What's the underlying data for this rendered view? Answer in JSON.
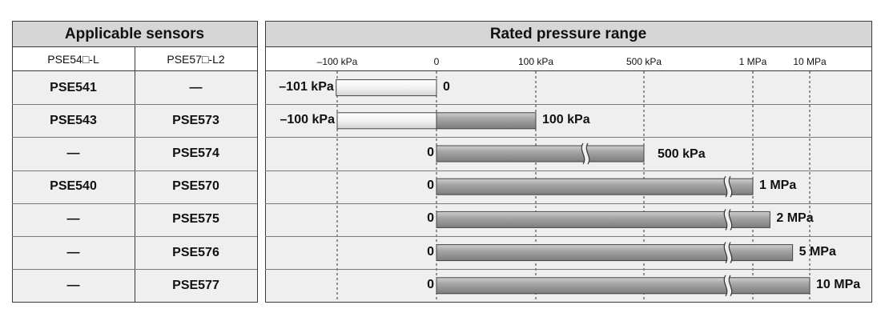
{
  "table": {
    "left_header": "Applicable sensors",
    "right_header": "Rated pressure range",
    "col1_header": "PSE54□-L",
    "col2_header": "PSE57□-L2"
  },
  "rows": [
    {
      "col1": "PSE541",
      "col2": "—",
      "min_label": "–101 kPa",
      "max_label": "0",
      "min": -101,
      "max": 0,
      "break": false
    },
    {
      "col1": "PSE543",
      "col2": "PSE573",
      "min_label": "–100 kPa",
      "max_label": "100 kPa",
      "min": -100,
      "max": 100,
      "break": false
    },
    {
      "col1": "—",
      "col2": "PSE574",
      "min_label": "0",
      "max_label": "500 kPa",
      "min": 0,
      "max": 500,
      "break": true
    },
    {
      "col1": "PSE540",
      "col2": "PSE570",
      "min_label": "0",
      "max_label": "1 MPa",
      "min": 0,
      "max": 1000,
      "break": true
    },
    {
      "col1": "—",
      "col2": "PSE575",
      "min_label": "0",
      "max_label": "2 MPa",
      "min": 0,
      "max": 2000,
      "break": true
    },
    {
      "col1": "—",
      "col2": "PSE576",
      "min_label": "0",
      "max_label": "5 MPa",
      "min": 0,
      "max": 5000,
      "break": true
    },
    {
      "col1": "—",
      "col2": "PSE577",
      "min_label": "0",
      "max_label": "10 MPa",
      "min": 0,
      "max": 10000,
      "break": true
    }
  ],
  "chart_data": {
    "type": "bar",
    "xlabel": "",
    "ylabel": "",
    "x_ticks": [
      "–100 kPa",
      "0",
      "100 kPa",
      "500 kPa",
      "1 MPa",
      "10 MPa"
    ],
    "x_tick_values": [
      -100,
      0,
      100,
      500,
      1000,
      10000
    ],
    "axis_note": "broken scale beyond 100 kPa",
    "series": [
      {
        "category": "PSE541",
        "min": -101,
        "max": 0
      },
      {
        "category": "PSE543 / PSE573",
        "min": -100,
        "max": 100
      },
      {
        "category": "PSE574",
        "min": 0,
        "max": 500
      },
      {
        "category": "PSE540 / PSE570",
        "min": 0,
        "max": 1000
      },
      {
        "category": "PSE575",
        "min": 0,
        "max": 2000
      },
      {
        "category": "PSE576",
        "min": 0,
        "max": 5000
      },
      {
        "category": "PSE577",
        "min": 0,
        "max": 10000
      }
    ],
    "grid": true,
    "colors": {
      "bar_dark": "#8c8c8c",
      "bar_light": "#f2f2f2",
      "header_bg": "#d6d6d6",
      "row_bg": "#efefef"
    }
  }
}
